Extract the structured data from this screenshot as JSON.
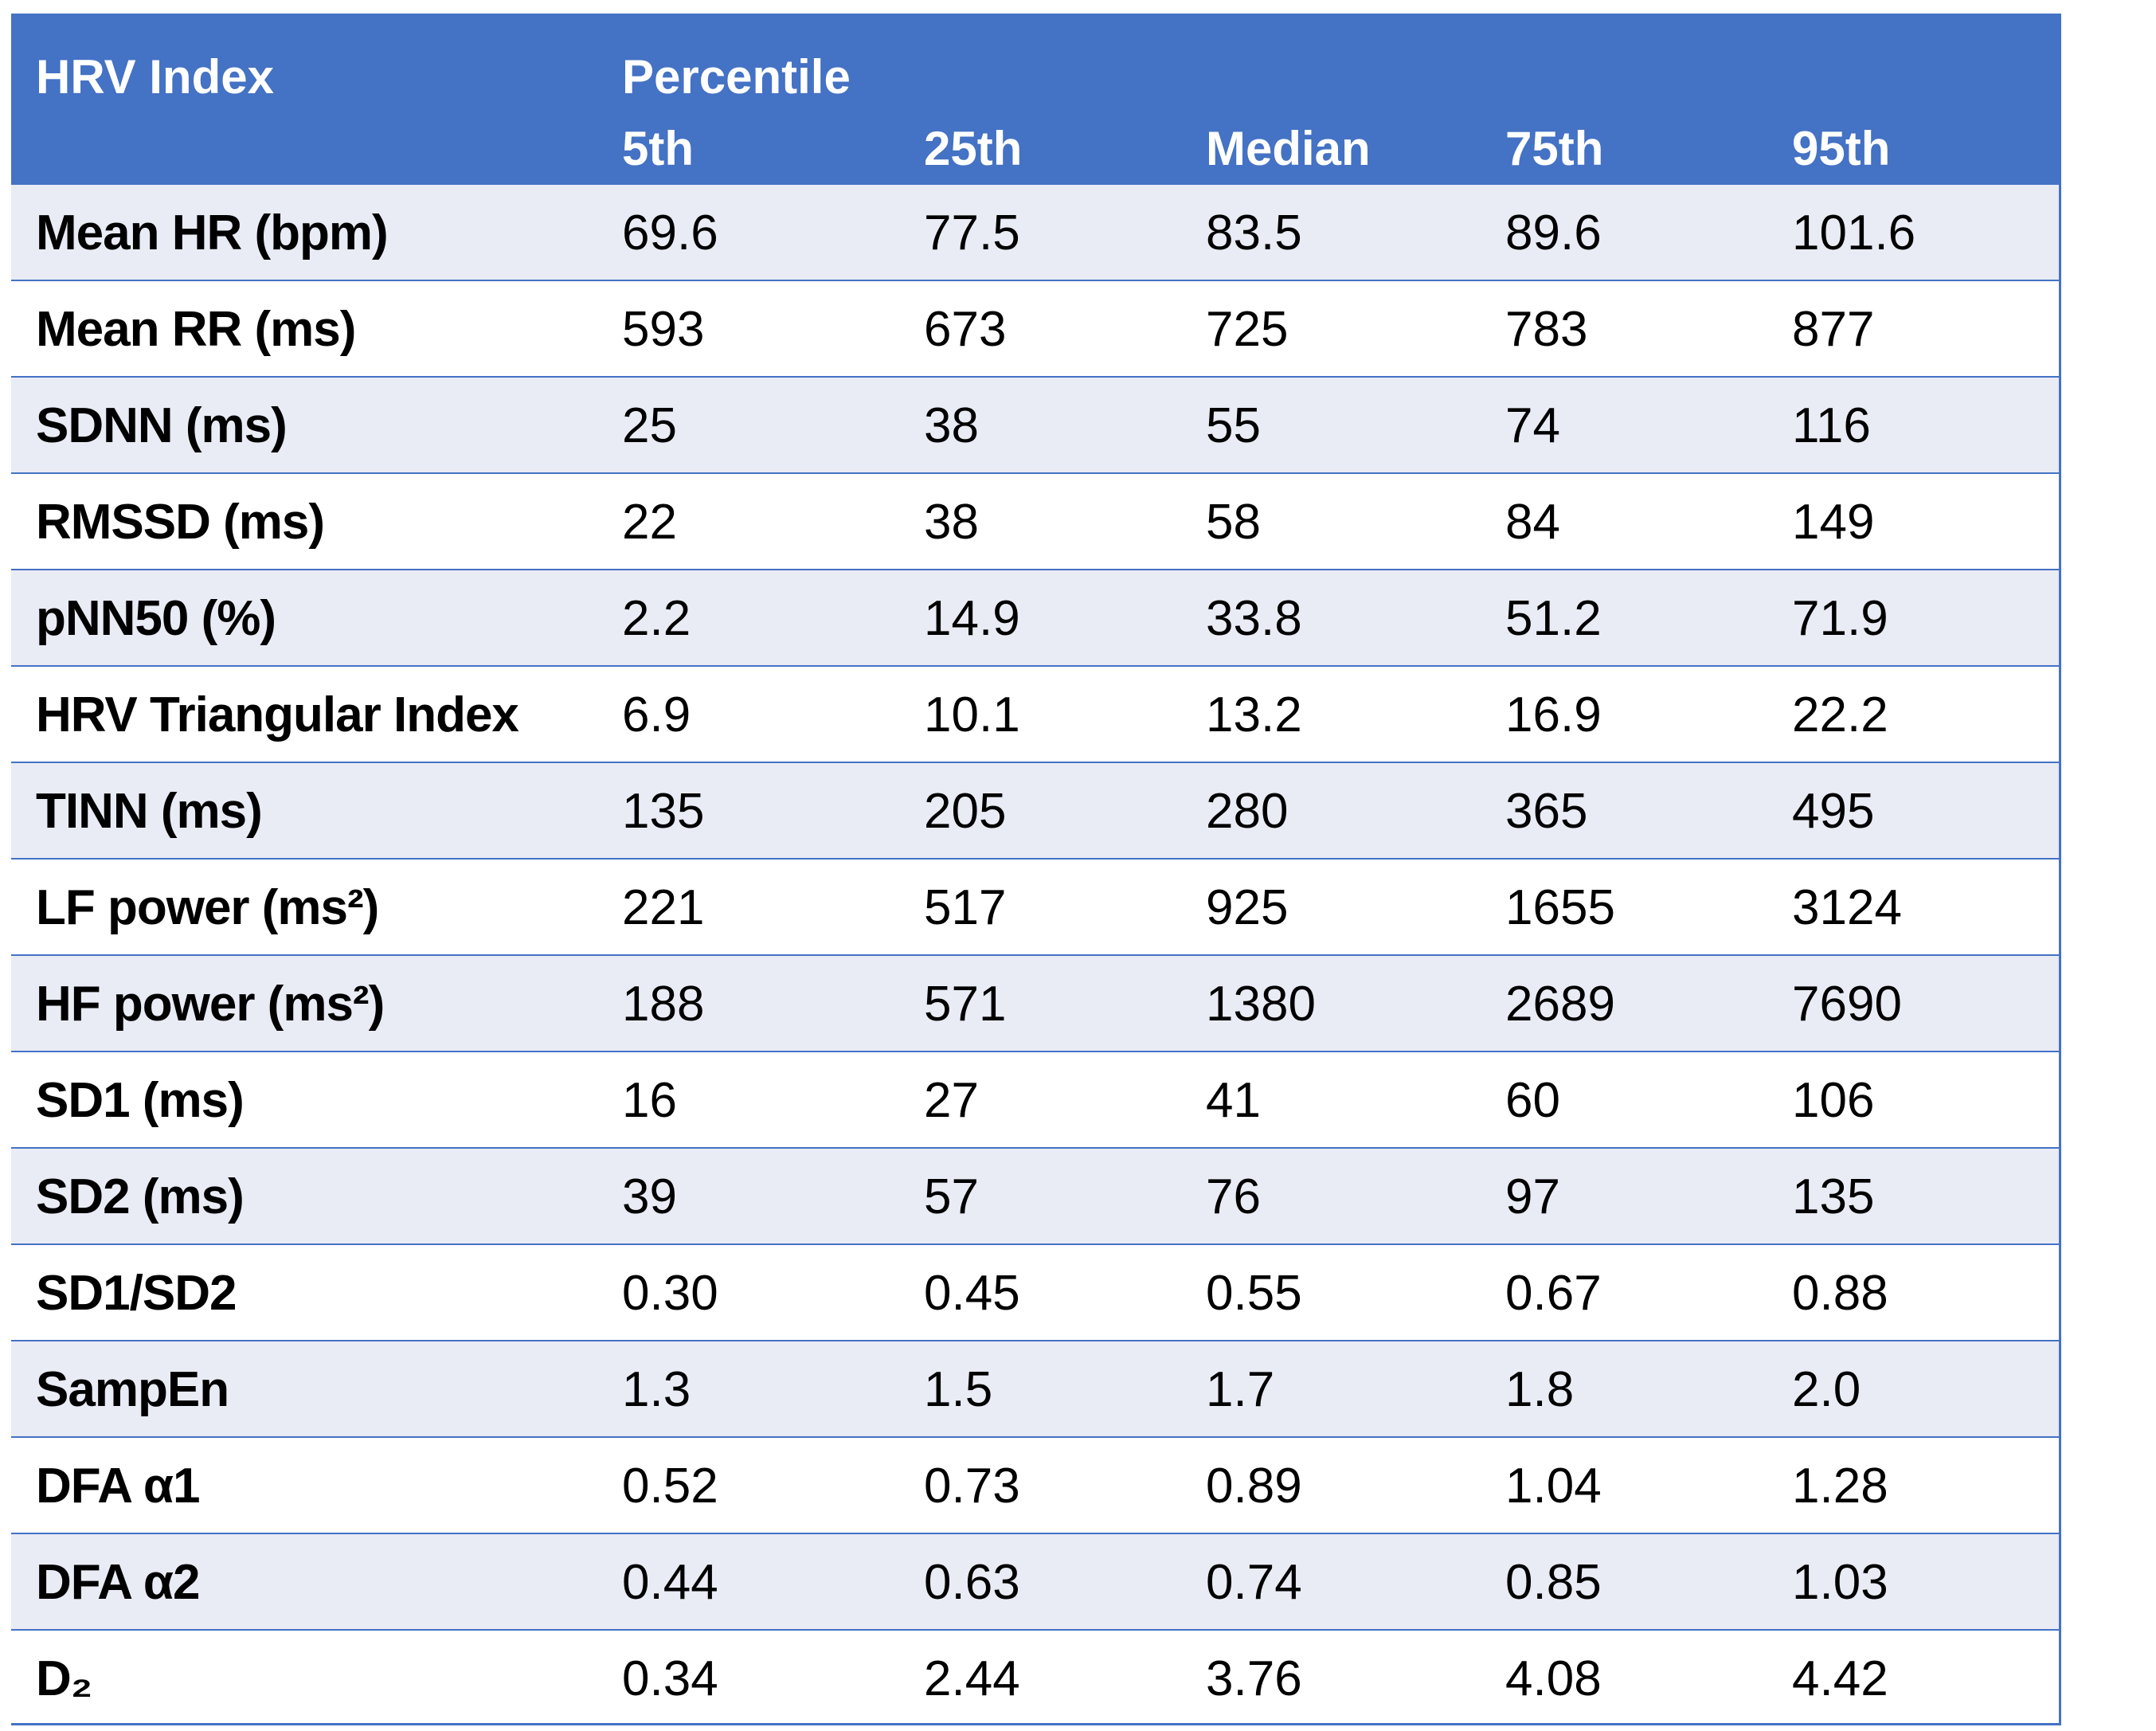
{
  "table": {
    "header": {
      "index": "HRV Index",
      "group": "Percentile",
      "columns": [
        "5th",
        "25th",
        "Median",
        "75th",
        "95th"
      ]
    },
    "rows": [
      [
        "Mean HR (bpm)",
        "69.6",
        "77.5",
        "83.5",
        "89.6",
        "101.6"
      ],
      [
        "Mean RR (ms)",
        "593",
        "673",
        "725",
        "783",
        "877"
      ],
      [
        "SDNN (ms)",
        "25",
        "38",
        "55",
        "74",
        "116"
      ],
      [
        "RMSSD (ms)",
        "22",
        "38",
        "58",
        "84",
        "149"
      ],
      [
        "pNN50 (%)",
        "2.2",
        "14.9",
        "33.8",
        "51.2",
        "71.9"
      ],
      [
        "HRV Triangular Index",
        "6.9",
        "10.1",
        "13.2",
        "16.9",
        "22.2"
      ],
      [
        "TINN (ms)",
        "135",
        "205",
        "280",
        "365",
        "495"
      ],
      [
        "LF power (ms²)",
        "221",
        "517",
        "925",
        "1655",
        "3124"
      ],
      [
        "HF power (ms²)",
        "188",
        "571",
        "1380",
        "2689",
        "7690"
      ],
      [
        "SD1 (ms)",
        "16",
        "27",
        "41",
        "60",
        "106"
      ],
      [
        "SD2 (ms)",
        "39",
        "57",
        "76",
        "97",
        "135"
      ],
      [
        "SD1/SD2",
        "0.30",
        "0.45",
        "0.55",
        "0.67",
        "0.88"
      ],
      [
        "SampEn",
        "1.3",
        "1.5",
        "1.7",
        "1.8",
        "2.0"
      ],
      [
        "DFA α1",
        "0.52",
        "0.73",
        "0.89",
        "1.04",
        "1.28"
      ],
      [
        "DFA α2",
        "0.44",
        "0.63",
        "0.74",
        "0.85",
        "1.03"
      ],
      [
        "D₂",
        "0.34",
        "2.44",
        "3.76",
        "4.08",
        "4.42"
      ]
    ]
  }
}
